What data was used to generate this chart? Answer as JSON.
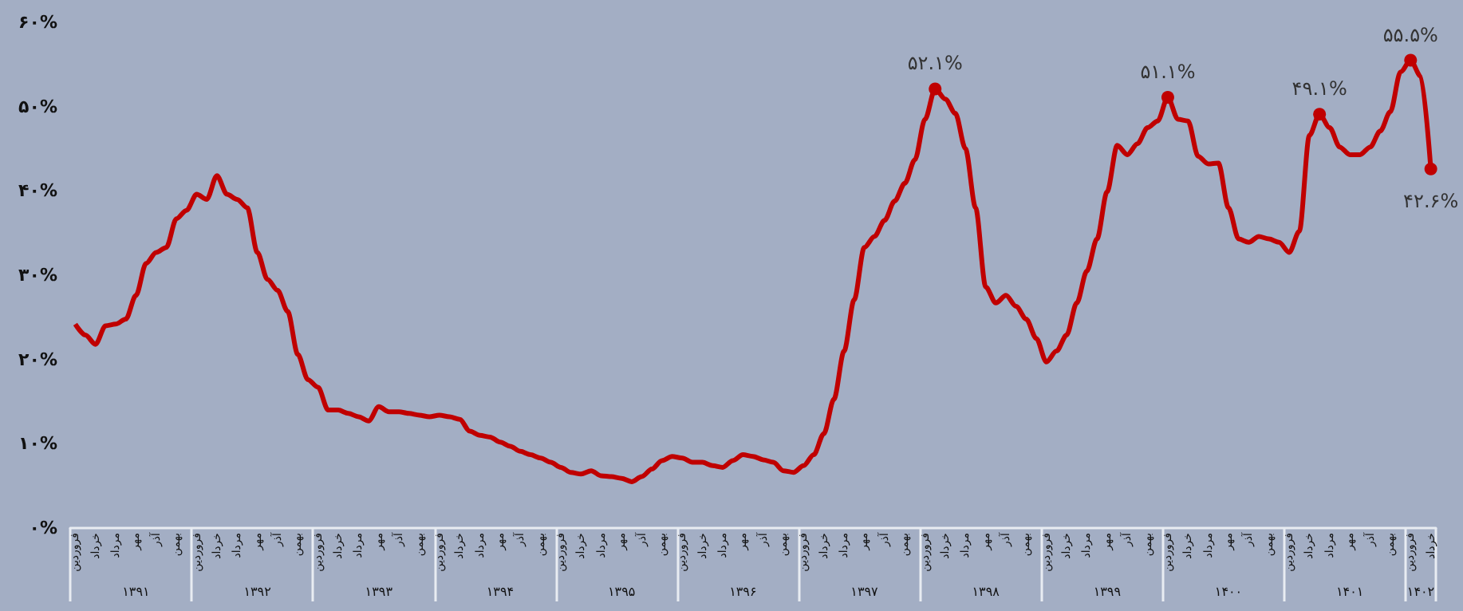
{
  "chart_data": {
    "type": "line",
    "categories": [
      "فروردین",
      null,
      "خرداد",
      null,
      "مرداد",
      null,
      "مهر",
      null,
      "آذر",
      null,
      "بهمن",
      null,
      "فروردین",
      null,
      "خرداد",
      null,
      "مرداد",
      null,
      "مهر",
      null,
      "آذر",
      null,
      "بهمن",
      null,
      "فروردین",
      null,
      "خرداد",
      null,
      "مرداد",
      null,
      "مهر",
      null,
      "آذر",
      null,
      "بهمن",
      null,
      "فروردین",
      null,
      "خرداد",
      null,
      "مرداد",
      null,
      "مهر",
      null,
      "آذر",
      null,
      "بهمن",
      null,
      "فروردین",
      null,
      "خرداد",
      null,
      "مرداد",
      null,
      "مهر",
      null,
      "آذر",
      null,
      "بهمن",
      null,
      "فروردین",
      null,
      "خرداد",
      null,
      "مرداد",
      null,
      "مهر",
      null,
      "آذر",
      null,
      "بهمن",
      null,
      "فروردین",
      null,
      "خرداد",
      null,
      "مرداد",
      null,
      "مهر",
      null,
      "آذر",
      null,
      "بهمن",
      null,
      "فروردین",
      null,
      "خرداد",
      null,
      "مرداد",
      null,
      "مهر",
      null,
      "آذر",
      null,
      "بهمن",
      null,
      "فروردین",
      null,
      "خرداد",
      null,
      "مرداد",
      null,
      "مهر",
      null,
      "آذر",
      null,
      "بهمن",
      null,
      "فروردین",
      null,
      "خرداد",
      null,
      "مرداد",
      null,
      "مهر",
      null,
      "آذر",
      null,
      "بهمن",
      null,
      "فروردین",
      null,
      "خرداد",
      null,
      "مرداد",
      null,
      "مهر",
      null,
      "آذر",
      null,
      "بهمن",
      null,
      "فروردین",
      null,
      "خرداد"
    ],
    "series": [
      {
        "color": "#c00000",
        "values": [
          24.2,
          22.9,
          21.8,
          24.0,
          24.2,
          24.8,
          27.6,
          31.4,
          32.7,
          33.3,
          36.7,
          37.7,
          39.6,
          39.0,
          41.8,
          39.6,
          39.0,
          38.0,
          32.7,
          29.5,
          28.2,
          25.7,
          20.6,
          17.6,
          16.7,
          14.0,
          14.0,
          13.6,
          13.2,
          12.7,
          14.4,
          13.8,
          13.8,
          13.6,
          13.4,
          13.2,
          13.4,
          13.2,
          12.9,
          11.5,
          11.0,
          10.8,
          10.2,
          9.7,
          9.1,
          8.7,
          8.3,
          7.8,
          7.2,
          6.6,
          6.4,
          6.8,
          6.2,
          6.1,
          5.9,
          5.5,
          6.1,
          7.0,
          8.0,
          8.5,
          8.3,
          7.8,
          7.8,
          7.4,
          7.2,
          8.0,
          8.7,
          8.5,
          8.1,
          7.8,
          6.8,
          6.6,
          7.4,
          8.7,
          11.2,
          15.3,
          21.0,
          27.1,
          33.3,
          34.6,
          36.5,
          38.8,
          40.9,
          43.7,
          48.5,
          52.1,
          50.9,
          49.2,
          45.0,
          38.0,
          28.6,
          26.7,
          27.6,
          26.3,
          24.8,
          22.5,
          19.7,
          21.0,
          22.9,
          26.7,
          30.5,
          34.3,
          39.9,
          45.4,
          44.3,
          45.6,
          47.5,
          48.3,
          51.1,
          48.5,
          48.3,
          44.1,
          43.2,
          43.3,
          38.0,
          34.3,
          33.9,
          34.6,
          34.3,
          33.9,
          32.7,
          35.2,
          46.6,
          49.1,
          47.5,
          45.2,
          44.3,
          44.3,
          45.2,
          47.1,
          49.4,
          54.1,
          55.5,
          53.6,
          42.6
        ],
        "value_labels": [
          null,
          null,
          null,
          null,
          null,
          null,
          null,
          null,
          null,
          null,
          null,
          null,
          null,
          null,
          null,
          null,
          null,
          null,
          null,
          null,
          null,
          null,
          null,
          null,
          null,
          null,
          null,
          null,
          null,
          null,
          null,
          null,
          null,
          null,
          null,
          null,
          null,
          null,
          null,
          null,
          null,
          null,
          null,
          null,
          null,
          null,
          null,
          null,
          null,
          null,
          null,
          null,
          null,
          null,
          null,
          null,
          null,
          null,
          null,
          null,
          null,
          null,
          null,
          null,
          null,
          null,
          null,
          null,
          null,
          null,
          null,
          null,
          null,
          null,
          null,
          null,
          null,
          null,
          null,
          null,
          null,
          null,
          null,
          null,
          null,
          "۵۲.۱%",
          null,
          null,
          null,
          null,
          null,
          null,
          null,
          null,
          null,
          null,
          null,
          null,
          null,
          null,
          null,
          null,
          null,
          null,
          null,
          null,
          null,
          null,
          "۵۱.۱%",
          null,
          null,
          null,
          null,
          null,
          null,
          null,
          null,
          null,
          null,
          null,
          null,
          null,
          null,
          "۴۹.۱%",
          null,
          null,
          null,
          null,
          null,
          null,
          null,
          null,
          "۵۵.۵%",
          null,
          "۴۲.۶%"
        ]
      }
    ],
    "ylim": [
      0,
      60
    ],
    "yticks": [
      {
        "value": 0,
        "label": "۰%"
      },
      {
        "value": 10,
        "label": "۱۰%"
      },
      {
        "value": 20,
        "label": "۲۰%"
      },
      {
        "value": 30,
        "label": "۳۰%"
      },
      {
        "value": 40,
        "label": "۴۰%"
      },
      {
        "value": 50,
        "label": "۵۰%"
      },
      {
        "value": 60,
        "label": "۶۰%"
      }
    ],
    "annotations": [
      "۱۳۹۱",
      "۱۳۹۲",
      "۱۳۹۳",
      "۱۳۹۴",
      "۱۳۹۵",
      "۱۳۹۶",
      "۱۳۹۷",
      "۱۳۹۸",
      "۱۳۹۹",
      "۱۴۰۰",
      "۱۴۰۱",
      "۱۴۰۲"
    ],
    "grid": false
  }
}
